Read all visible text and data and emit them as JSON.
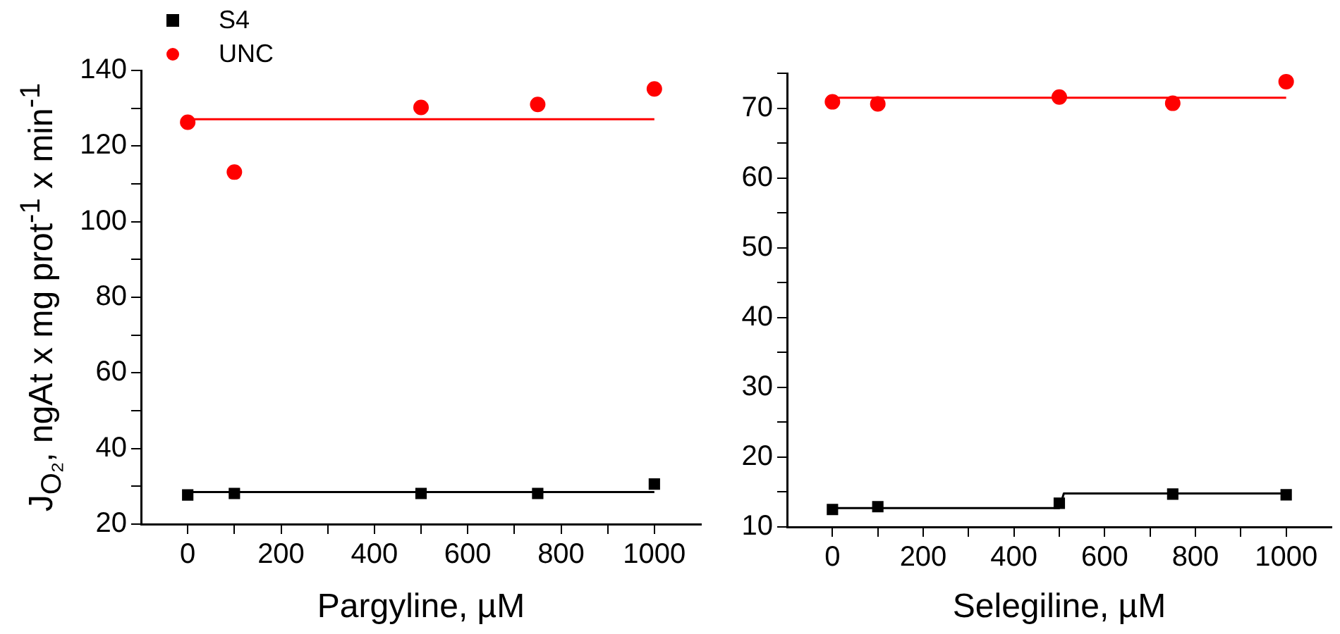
{
  "chart_data": [
    {
      "type": "scatter",
      "xlabel": "Pargyline, µM",
      "ylabel": "J$_{O₂}$, ngAt x mg prot$^{-1}$ x min$^{-1}$",
      "legend": "top left",
      "grid": false,
      "xlim": [
        -100,
        1100
      ],
      "xticks": [
        0,
        {
          "value": 100,
          "label": null
        },
        200,
        {
          "value": 300,
          "label": null
        },
        400,
        {
          "value": 500,
          "label": null
        },
        600,
        {
          "value": 700,
          "label": null
        },
        800,
        {
          "value": 900,
          "label": null
        },
        1000
      ],
      "ylim": [
        20,
        140
      ],
      "yticks": [
        20,
        {
          "value": 30,
          "label": null
        },
        40,
        {
          "value": 50,
          "label": null
        },
        60,
        {
          "value": 70,
          "label": null
        },
        80,
        {
          "value": 90,
          "label": null
        },
        100,
        {
          "value": 110,
          "label": null
        },
        120,
        {
          "value": 130,
          "label": null
        },
        140
      ],
      "series": [
        {
          "name": "S4",
          "color": "#000000",
          "marker": "square",
          "x": [
            0,
            100,
            500,
            750,
            1000
          ],
          "values": [
            27.7,
            28.1,
            28.1,
            28.1,
            30.6
          ]
        },
        {
          "name": "UNC",
          "color": "#ff0000",
          "marker": "circle",
          "x": [
            0,
            100,
            500,
            750,
            1000
          ],
          "values": [
            126.3,
            113.1,
            130.2,
            131.0,
            135.1
          ]
        },
        {
          "type": "line",
          "color": "#000000",
          "marker": "none",
          "x": [
            0,
            1000
          ],
          "values": [
            28.5,
            28.5
          ]
        },
        {
          "type": "line",
          "color": "#ff0000",
          "marker": "none",
          "x": [
            0,
            1000
          ],
          "values": [
            127.1,
            127.1
          ]
        }
      ]
    },
    {
      "type": "scatter",
      "xlabel": "Selegiline, µM",
      "legend": false,
      "grid": false,
      "xlim": [
        -100,
        1100
      ],
      "xticks": [
        0,
        {
          "value": 100,
          "label": null
        },
        200,
        {
          "value": 300,
          "label": null
        },
        400,
        {
          "value": 500,
          "label": null
        },
        600,
        {
          "value": 700,
          "label": null
        },
        800,
        {
          "value": 900,
          "label": null
        },
        1000
      ],
      "ylim": [
        10,
        75
      ],
      "yticks": [
        10,
        {
          "value": 15,
          "label": null
        },
        20,
        {
          "value": 25,
          "label": null
        },
        30,
        {
          "value": 35,
          "label": null
        },
        40,
        {
          "value": 45,
          "label": null
        },
        50,
        {
          "value": 55,
          "label": null
        },
        60,
        {
          "value": 65,
          "label": null
        },
        70,
        {
          "value": 75,
          "label": null
        }
      ],
      "series": [
        {
          "color": "#000000",
          "marker": "square",
          "x": [
            0,
            100,
            500,
            750,
            1000
          ],
          "values": [
            12.5,
            12.9,
            13.4,
            14.7,
            14.6
          ]
        },
        {
          "color": "#ff0000",
          "marker": "circle",
          "x": [
            0,
            100,
            500,
            750,
            1000
          ],
          "values": [
            70.9,
            70.6,
            71.6,
            70.7,
            73.8
          ]
        },
        {
          "type": "line",
          "color": "#000000",
          "marker": "none",
          "x": [
            0,
            500,
            510,
            1000
          ],
          "values": [
            12.7,
            12.7,
            14.8,
            14.8
          ]
        },
        {
          "type": "line",
          "color": "#ff0000",
          "marker": "none",
          "x": [
            0,
            1000
          ],
          "values": [
            71.5,
            71.5
          ]
        }
      ]
    }
  ]
}
